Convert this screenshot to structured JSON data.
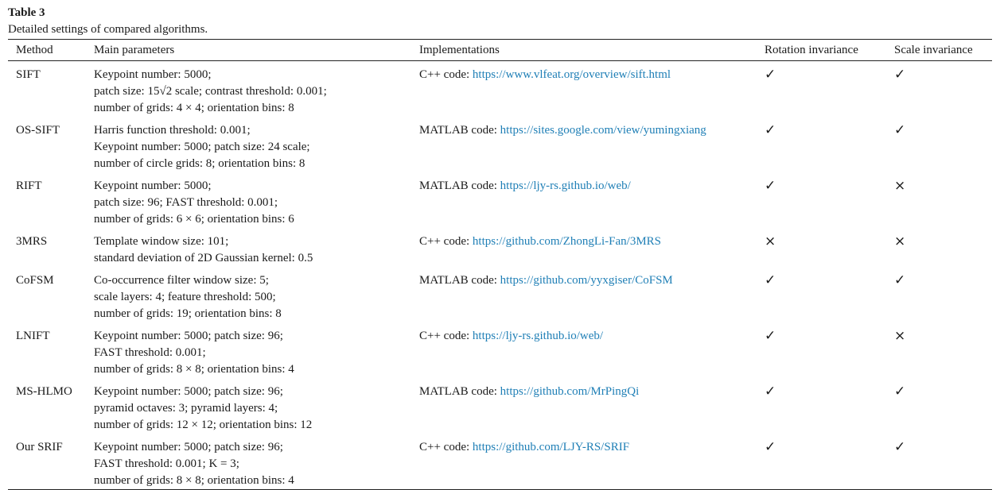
{
  "caption": {
    "title": "Table 3",
    "text": "Detailed settings of compared algorithms."
  },
  "table": {
    "headers": [
      "Method",
      "Main parameters",
      "Implementations",
      "Rotation invariance",
      "Scale invariance"
    ],
    "rows": [
      {
        "method": "SIFT",
        "params": [
          "Keypoint number: 5000;",
          "patch size: 15√2 scale; contrast threshold: 0.001;",
          "number of grids: 4 × 4; orientation bins: 8"
        ],
        "impl_prefix": "C++ code: ",
        "impl_link": "https://www.vlfeat.org/overview/sift.html",
        "rotation": "✓",
        "scale": "✓"
      },
      {
        "method": "OS-SIFT",
        "params": [
          "Harris function threshold: 0.001;",
          "Keypoint number: 5000; patch size: 24 scale;",
          "number of circle grids: 8; orientation bins: 8"
        ],
        "impl_prefix": "MATLAB code: ",
        "impl_link": "https://sites.google.com/view/yumingxiang",
        "rotation": "✓",
        "scale": "✓"
      },
      {
        "method": "RIFT",
        "params": [
          "Keypoint number: 5000;",
          "patch size: 96; FAST threshold: 0.001;",
          "number of grids: 6 × 6; orientation bins: 6"
        ],
        "impl_prefix": "MATLAB code: ",
        "impl_link": "https://ljy-rs.github.io/web/",
        "rotation": "✓",
        "scale": "×"
      },
      {
        "method": "3MRS",
        "params": [
          "Template window size: 101;",
          "standard deviation of 2D Gaussian kernel: 0.5"
        ],
        "impl_prefix": "C++ code: ",
        "impl_link": "https://github.com/ZhongLi-Fan/3MRS",
        "rotation": "×",
        "scale": "×"
      },
      {
        "method": "CoFSM",
        "params": [
          "Co-occurrence filter window size: 5;",
          "scale layers: 4; feature threshold: 500;",
          "number of grids: 19; orientation bins: 8"
        ],
        "impl_prefix": "MATLAB code: ",
        "impl_link": "https://github.com/yyxgiser/CoFSM",
        "rotation": "✓",
        "scale": "✓"
      },
      {
        "method": "LNIFT",
        "params": [
          "Keypoint number: 5000; patch size: 96;",
          "FAST threshold: 0.001;",
          "number of grids: 8 × 8; orientation bins: 4"
        ],
        "impl_prefix": "C++ code: ",
        "impl_link": "https://ljy-rs.github.io/web/",
        "rotation": "✓",
        "scale": "×"
      },
      {
        "method": "MS-HLMO",
        "params": [
          "Keypoint number: 5000; patch size: 96;",
          "pyramid octaves: 3; pyramid layers: 4;",
          "number of grids: 12 × 12; orientation bins: 12"
        ],
        "impl_prefix": "MATLAB code: ",
        "impl_link": "https://github.com/MrPingQi",
        "rotation": "✓",
        "scale": "✓"
      },
      {
        "method": "Our SRIF",
        "params": [
          "Keypoint number: 5000; patch size: 96;",
          "FAST threshold: 0.001; K = 3;",
          "number of grids: 8 × 8; orientation bins: 4"
        ],
        "impl_prefix": "C++ code: ",
        "impl_link": "https://github.com/LJY-RS/SRIF",
        "rotation": "✓",
        "scale": "✓"
      }
    ]
  }
}
